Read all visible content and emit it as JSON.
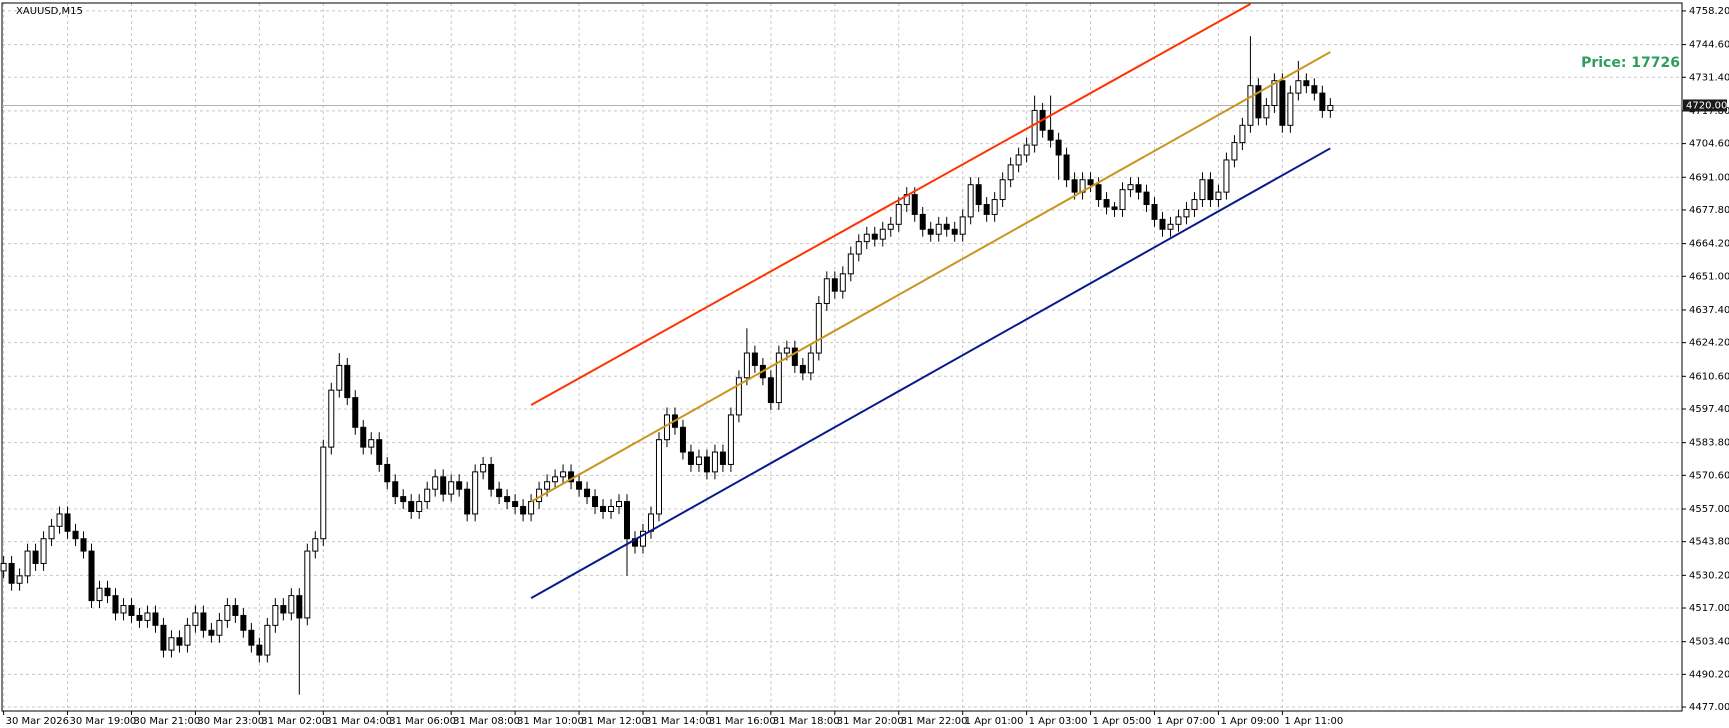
{
  "chart_data": {
    "type": "candlestick",
    "title": "XAUUSD,M15",
    "annotation": "Price: 17726",
    "annotation_color": "#2e9e5e",
    "up_color": "#ffffff",
    "down_color": "#000000",
    "grid": true,
    "xlim": [
      -0.2,
      210
    ],
    "ylim": [
      4475.4,
      4761.4
    ],
    "yticks": [
      {
        "value": 4758.2,
        "label": "4758.20"
      },
      {
        "value": 4744.6,
        "label": "4744.60"
      },
      {
        "value": 4731.4,
        "label": "4731.40"
      },
      {
        "value": 4717.8,
        "label": "4717.80"
      },
      {
        "value": 4704.6,
        "label": "4704.60"
      },
      {
        "value": 4691,
        "label": "4691.00"
      },
      {
        "value": 4677.8,
        "label": "4677.80"
      },
      {
        "value": 4664.2,
        "label": "4664.20"
      },
      {
        "value": 4651,
        "label": "4651.00"
      },
      {
        "value": 4637.4,
        "label": "4637.40"
      },
      {
        "value": 4624.2,
        "label": "4624.20"
      },
      {
        "value": 4610.6,
        "label": "4610.60"
      },
      {
        "value": 4597.4,
        "label": "4597.40"
      },
      {
        "value": 4583.8,
        "label": "4583.80"
      },
      {
        "value": 4570.6,
        "label": "4570.60"
      },
      {
        "value": 4557,
        "label": "4557.00"
      },
      {
        "value": 4543.8,
        "label": "4543.80"
      },
      {
        "value": 4530.2,
        "label": "4530.20"
      },
      {
        "value": 4517,
        "label": "4517.00"
      },
      {
        "value": 4503.4,
        "label": "4503.40"
      },
      {
        "value": 4490.2,
        "label": "4490.20"
      },
      {
        "value": 4477,
        "label": "4477.00"
      }
    ],
    "xticks": [
      {
        "value": 0,
        "label": "30 Mar 2026"
      },
      {
        "value": 8,
        "label": "30 Mar 19:00"
      },
      {
        "value": 16,
        "label": "30 Mar 21:00"
      },
      {
        "value": 24,
        "label": "30 Mar 23:00"
      },
      {
        "value": 32,
        "label": "31 Mar 02:00"
      },
      {
        "value": 40,
        "label": "31 Mar 04:00"
      },
      {
        "value": 48,
        "label": "31 Mar 06:00"
      },
      {
        "value": 56,
        "label": "31 Mar 08:00"
      },
      {
        "value": 64,
        "label": "31 Mar 10:00"
      },
      {
        "value": 72,
        "label": "31 Mar 12:00"
      },
      {
        "value": 80,
        "label": "31 Mar 14:00"
      },
      {
        "value": 88,
        "label": "31 Mar 16:00"
      },
      {
        "value": 96,
        "label": "31 Mar 18:00"
      },
      {
        "value": 104,
        "label": "31 Mar 20:00"
      },
      {
        "value": 112,
        "label": "31 Mar 22:00"
      },
      {
        "value": 120,
        "label": "1 Apr 01:00"
      },
      {
        "value": 128,
        "label": "1 Apr 03:00"
      },
      {
        "value": 136,
        "label": "1 Apr 05:00"
      },
      {
        "value": 144,
        "label": "1 Apr 07:00"
      },
      {
        "value": 152,
        "label": "1 Apr 09:00"
      },
      {
        "value": 160,
        "label": "1 Apr 11:00"
      }
    ],
    "current_price": {
      "value": 4720,
      "label": "4720.00"
    },
    "channels": [
      {
        "color": "#ff3300",
        "x": [
          66,
          156
        ],
        "y": [
          4599,
          4761
        ]
      },
      {
        "color": "#c8961e",
        "x": [
          66,
          166
        ],
        "y": [
          4560,
          4741.6
        ]
      },
      {
        "color": "#0a1a8c",
        "x": [
          66,
          166
        ],
        "y": [
          4521,
          4702.7
        ]
      }
    ],
    "open": [
      4532,
      4535,
      4527,
      4530,
      4540,
      4535,
      4545,
      4550,
      4555,
      4548,
      4545,
      4540,
      4520,
      4525,
      4522,
      4515,
      4518,
      4514,
      4512,
      4515,
      4510,
      4500,
      4505,
      4502,
      4510,
      4515,
      4508,
      4506,
      4512,
      4518,
      4514,
      4508,
      4502,
      4498,
      4510,
      4518,
      4515,
      4522,
      4513,
      4540,
      4545,
      4582,
      4605,
      4615,
      4602,
      4590,
      4582,
      4585,
      4575,
      4568,
      4562,
      4560,
      4556,
      4560,
      4565,
      4570,
      4563,
      4568,
      4565,
      4555,
      4572,
      4575,
      4565,
      4562,
      4560,
      4558,
      4555,
      4560,
      4565,
      4568,
      4570,
      4572,
      4568,
      4565,
      4562,
      4558,
      4556,
      4558,
      4560,
      4545,
      4542,
      4548,
      4555,
      4585,
      4595,
      4590,
      4580,
      4575,
      4578,
      4572,
      4580,
      4575,
      4595,
      4610,
      4620,
      4615,
      4610,
      4600,
      4620,
      4622,
      4615,
      4612,
      4620,
      4640,
      4650,
      4645,
      4652,
      4660,
      4665,
      4668,
      4666,
      4670,
      4672,
      4680,
      4684,
      4676,
      4670,
      4668,
      4672,
      4670,
      4668,
      4675,
      4688,
      4680,
      4676,
      4682,
      4690,
      4696,
      4700,
      4704,
      4718,
      4710,
      4706,
      4700,
      4690,
      4685,
      4690,
      4688,
      4682,
      4679,
      4678,
      4686,
      4688,
      4685,
      4680,
      4674,
      4670,
      4672,
      4675,
      4678,
      4682,
      4690,
      4682,
      4685,
      4698,
      4705,
      4712,
      4728,
      4715,
      4720,
      4730,
      4712,
      4725,
      4730,
      4728,
      4725,
      4718
    ],
    "high": [
      4538,
      4538,
      4533,
      4543,
      4543,
      4548,
      4553,
      4558,
      4558,
      4551,
      4548,
      4543,
      4528,
      4528,
      4525,
      4521,
      4521,
      4517,
      4518,
      4518,
      4513,
      4508,
      4508,
      4513,
      4518,
      4518,
      4511,
      4515,
      4521,
      4521,
      4517,
      4511,
      4505,
      4513,
      4521,
      4521,
      4525,
      4525,
      4543,
      4548,
      4585,
      4608,
      4620,
      4618,
      4605,
      4593,
      4588,
      4588,
      4578,
      4571,
      4565,
      4563,
      4563,
      4568,
      4573,
      4573,
      4571,
      4571,
      4568,
      4575,
      4578,
      4578,
      4568,
      4565,
      4563,
      4561,
      4563,
      4568,
      4571,
      4573,
      4575,
      4575,
      4571,
      4568,
      4565,
      4561,
      4561,
      4563,
      4563,
      4548,
      4551,
      4558,
      4588,
      4598,
      4598,
      4593,
      4583,
      4581,
      4581,
      4583,
      4583,
      4598,
      4613,
      4630,
      4623,
      4618,
      4613,
      4623,
      4625,
      4625,
      4618,
      4623,
      4643,
      4653,
      4653,
      4655,
      4663,
      4668,
      4671,
      4671,
      4673,
      4675,
      4683,
      4687,
      4687,
      4679,
      4673,
      4675,
      4675,
      4673,
      4678,
      4691,
      4691,
      4683,
      4685,
      4693,
      4699,
      4703,
      4707,
      4724,
      4721,
      4724,
      4709,
      4703,
      4693,
      4693,
      4693,
      4691,
      4685,
      4681,
      4689,
      4691,
      4691,
      4688,
      4683,
      4677,
      4675,
      4678,
      4681,
      4685,
      4693,
      4693,
      4688,
      4701,
      4708,
      4715,
      4748,
      4731,
      4723,
      4733,
      4733,
      4728,
      4738,
      4733,
      4731,
      4728,
      4723
    ],
    "low": [
      4529,
      4524,
      4524,
      4527,
      4532,
      4532,
      4542,
      4547,
      4545,
      4542,
      4537,
      4517,
      4517,
      4519,
      4512,
      4512,
      4511,
      4509,
      4509,
      4507,
      4497,
      4497,
      4499,
      4499,
      4507,
      4505,
      4503,
      4503,
      4509,
      4511,
      4505,
      4499,
      4495,
      4495,
      4507,
      4512,
      4512,
      4482,
      4510,
      4537,
      4542,
      4579,
      4602,
      4599,
      4587,
      4579,
      4579,
      4572,
      4565,
      4559,
      4557,
      4553,
      4553,
      4557,
      4562,
      4560,
      4560,
      4562,
      4552,
      4552,
      4569,
      4562,
      4559,
      4557,
      4555,
      4552,
      4552,
      4557,
      4562,
      4565,
      4567,
      4565,
      4562,
      4559,
      4555,
      4553,
      4553,
      4555,
      4530,
      4539,
      4539,
      4545,
      4552,
      4582,
      4587,
      4577,
      4572,
      4572,
      4569,
      4569,
      4572,
      4572,
      4592,
      4607,
      4612,
      4607,
      4597,
      4597,
      4617,
      4612,
      4609,
      4609,
      4617,
      4637,
      4642,
      4642,
      4649,
      4657,
      4662,
      4663,
      4663,
      4667,
      4669,
      4677,
      4673,
      4667,
      4665,
      4665,
      4667,
      4665,
      4665,
      4672,
      4677,
      4673,
      4673,
      4679,
      4687,
      4693,
      4697,
      4701,
      4707,
      4703,
      4690,
      4687,
      4682,
      4682,
      4685,
      4679,
      4676,
      4675,
      4675,
      4683,
      4682,
      4677,
      4671,
      4667,
      4667,
      4669,
      4672,
      4675,
      4679,
      4679,
      4679,
      4682,
      4695,
      4702,
      4709,
      4712,
      4712,
      4717,
      4709,
      4709,
      4722,
      4725,
      4722,
      4715,
      4715
    ],
    "close": [
      4535,
      4527,
      4530,
      4540,
      4535,
      4545,
      4550,
      4555,
      4548,
      4545,
      4540,
      4520,
      4525,
      4522,
      4515,
      4518,
      4514,
      4512,
      4515,
      4510,
      4500,
      4505,
      4502,
      4510,
      4515,
      4508,
      4506,
      4512,
      4518,
      4514,
      4508,
      4502,
      4498,
      4510,
      4518,
      4515,
      4522,
      4513,
      4540,
      4545,
      4582,
      4605,
      4615,
      4602,
      4590,
      4582,
      4585,
      4575,
      4568,
      4562,
      4560,
      4556,
      4560,
      4565,
      4570,
      4563,
      4568,
      4565,
      4555,
      4572,
      4575,
      4565,
      4562,
      4560,
      4558,
      4555,
      4560,
      4565,
      4568,
      4570,
      4572,
      4568,
      4565,
      4562,
      4558,
      4556,
      4558,
      4560,
      4545,
      4542,
      4548,
      4555,
      4585,
      4595,
      4590,
      4580,
      4575,
      4578,
      4572,
      4580,
      4575,
      4595,
      4610,
      4620,
      4615,
      4610,
      4600,
      4620,
      4622,
      4615,
      4612,
      4620,
      4640,
      4650,
      4645,
      4652,
      4660,
      4665,
      4668,
      4666,
      4670,
      4672,
      4680,
      4684,
      4676,
      4670,
      4668,
      4672,
      4670,
      4668,
      4675,
      4688,
      4680,
      4676,
      4682,
      4690,
      4696,
      4700,
      4704,
      4718,
      4710,
      4706,
      4700,
      4690,
      4685,
      4690,
      4688,
      4682,
      4679,
      4678,
      4686,
      4688,
      4685,
      4680,
      4674,
      4670,
      4672,
      4675,
      4678,
      4682,
      4690,
      4682,
      4685,
      4698,
      4705,
      4712,
      4728,
      4715,
      4720,
      4730,
      4712,
      4725,
      4730,
      4728,
      4725,
      4718,
      4720
    ]
  }
}
